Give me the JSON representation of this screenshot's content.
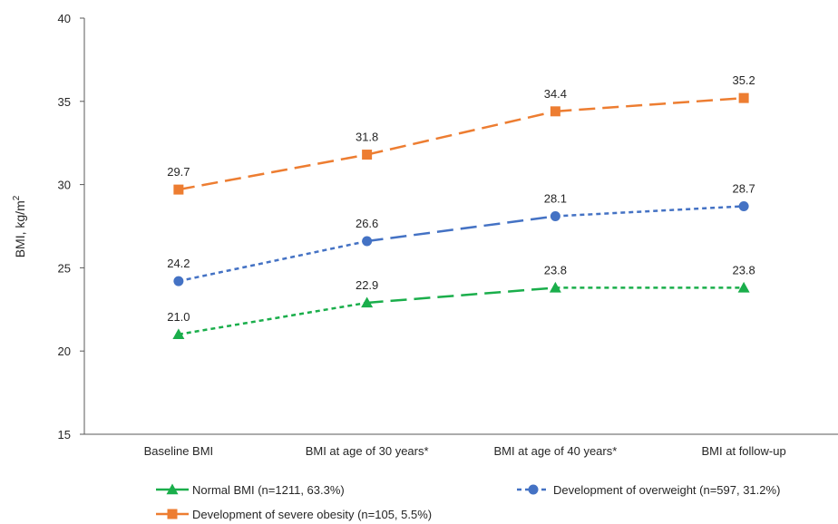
{
  "chart_data": {
    "type": "line",
    "categories": [
      "Baseline BMI",
      "BMI at age of 30 years*",
      "BMI at age of 40 years*",
      "BMI at follow-up"
    ],
    "ylabel_main": "BMI, kg/m",
    "ylabel_sup": "2",
    "ylim": [
      15,
      40
    ],
    "yticks": [
      15,
      20,
      25,
      30,
      35,
      40
    ],
    "ytick_labels": [
      "15",
      "20",
      "25",
      "30",
      "35",
      "40"
    ],
    "grid": false,
    "legend_position": "bottom",
    "series": [
      {
        "name": "Normal BMI (n=1211, 63.3%)",
        "values": [
          21.0,
          22.9,
          23.8,
          23.8
        ],
        "labels": [
          "21.0",
          "22.9",
          "23.8",
          "23.8"
        ],
        "color": "#1AAE4B",
        "marker": "triangle",
        "dash": [
          "short",
          "long",
          "short"
        ]
      },
      {
        "name": "Development of overweight (n=597, 31.2%)",
        "values": [
          24.2,
          26.6,
          28.1,
          28.7
        ],
        "labels": [
          "24.2",
          "26.6",
          "28.1",
          "28.7"
        ],
        "color": "#4472C4",
        "marker": "circle",
        "dash": [
          "short",
          "long",
          "short"
        ]
      },
      {
        "name": "Development of severe obesity (n=105, 5.5%)",
        "values": [
          29.7,
          31.8,
          34.4,
          35.2
        ],
        "labels": [
          "29.7",
          "31.8",
          "34.4",
          "35.2"
        ],
        "color": "#ED7D31",
        "marker": "square",
        "dash": [
          "long",
          "long",
          "long"
        ]
      }
    ]
  }
}
